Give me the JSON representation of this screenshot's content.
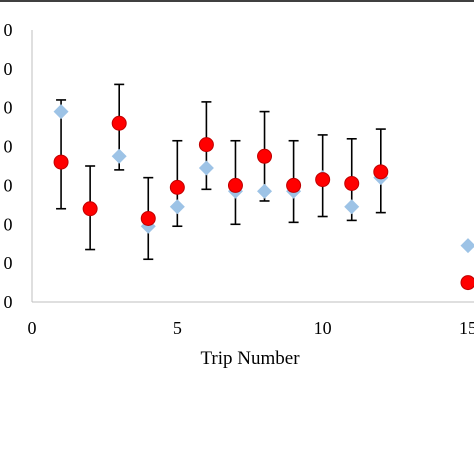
{
  "chart_data": {
    "type": "scatter",
    "xlabel": "Trip Number",
    "ylabel": "",
    "x_ticks": [
      "0",
      "5",
      "10",
      "15"
    ],
    "y_tick_labels_visible": [
      "0",
      "0",
      "0",
      "0",
      "0",
      "0",
      "0",
      "0"
    ],
    "xlim": [
      0,
      15
    ],
    "ylim": [
      0,
      7
    ],
    "grid": false,
    "legend": "none",
    "series": [
      {
        "color": "#9dc3e6",
        "marker": "diamond",
        "points": [
          {
            "x": 1,
            "y": 4.9
          },
          {
            "x": 3,
            "y": 3.75
          },
          {
            "x": 4,
            "y": 1.95
          },
          {
            "x": 5,
            "y": 2.45
          },
          {
            "x": 6,
            "y": 3.45
          },
          {
            "x": 7,
            "y": 2.85
          },
          {
            "x": 8,
            "y": 2.85
          },
          {
            "x": 9,
            "y": 2.85
          },
          {
            "x": 10,
            "y": 3.2
          },
          {
            "x": 11,
            "y": 2.45
          },
          {
            "x": 12,
            "y": 3.2
          },
          {
            "x": 15,
            "y": 1.45
          }
        ]
      },
      {
        "color": "#ff0000",
        "marker": "circle",
        "points": [
          {
            "x": 1,
            "y": 3.6,
            "err_low": 2.4,
            "err_high": 5.2
          },
          {
            "x": 2,
            "y": 2.4,
            "err_low": 1.35,
            "err_high": 3.5
          },
          {
            "x": 3,
            "y": 4.6,
            "err_low": 3.4,
            "err_high": 5.6
          },
          {
            "x": 4,
            "y": 2.15,
            "err_low": 1.1,
            "err_high": 3.2
          },
          {
            "x": 5,
            "y": 2.95,
            "err_low": 1.95,
            "err_high": 4.15
          },
          {
            "x": 6,
            "y": 4.05,
            "err_low": 2.9,
            "err_high": 5.15
          },
          {
            "x": 7,
            "y": 3.0,
            "err_low": 2.0,
            "err_high": 4.15
          },
          {
            "x": 8,
            "y": 3.75,
            "err_low": 2.6,
            "err_high": 4.9
          },
          {
            "x": 9,
            "y": 3.0,
            "err_low": 2.05,
            "err_high": 4.15
          },
          {
            "x": 10,
            "y": 3.15,
            "err_low": 2.2,
            "err_high": 4.3
          },
          {
            "x": 11,
            "y": 3.05,
            "err_low": 2.1,
            "err_high": 4.2
          },
          {
            "x": 12,
            "y": 3.35,
            "err_low": 2.3,
            "err_high": 4.45
          },
          {
            "x": 15,
            "y": 0.5
          }
        ]
      }
    ]
  }
}
